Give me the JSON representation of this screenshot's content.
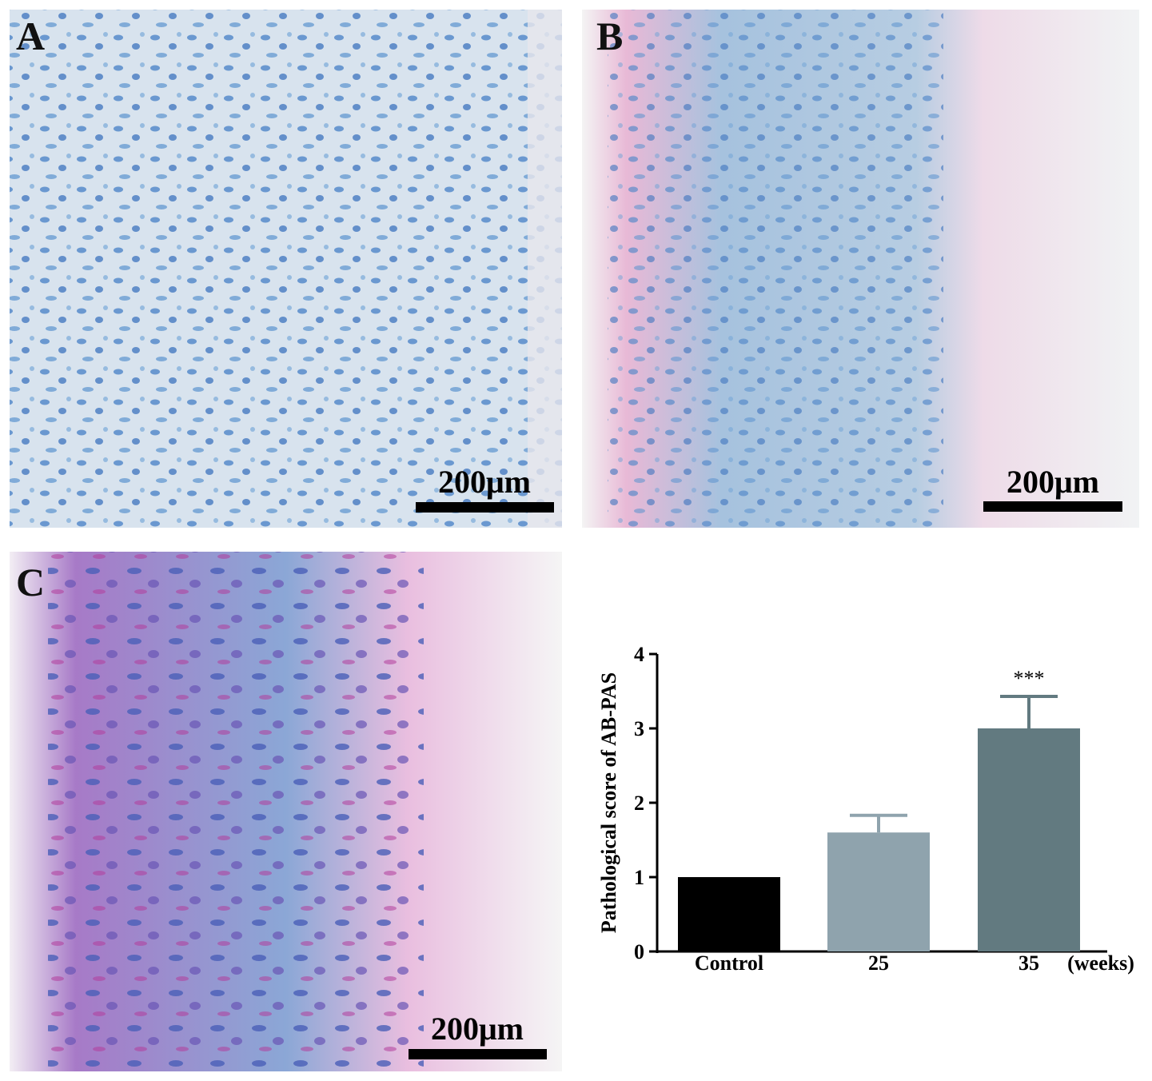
{
  "panels": [
    {
      "label": "A",
      "scale_bar": "200μm"
    },
    {
      "label": "B",
      "scale_bar": "200μm"
    },
    {
      "label": "C",
      "scale_bar": "200μm"
    }
  ],
  "chart_data": {
    "type": "bar",
    "ylabel": "Pathological score of AB-PAS",
    "x_unit": "(weeks)",
    "categories": [
      "Control",
      "25",
      "35"
    ],
    "values": [
      1,
      1.6,
      3.0
    ],
    "errors": [
      0,
      0.23,
      0.43
    ],
    "colors": [
      "#000000",
      "#8fa3ad",
      "#627a80"
    ],
    "significance": [
      null,
      null,
      "***"
    ],
    "ylim": [
      0,
      4
    ],
    "yticks": [
      0,
      1,
      2,
      3,
      4
    ]
  }
}
